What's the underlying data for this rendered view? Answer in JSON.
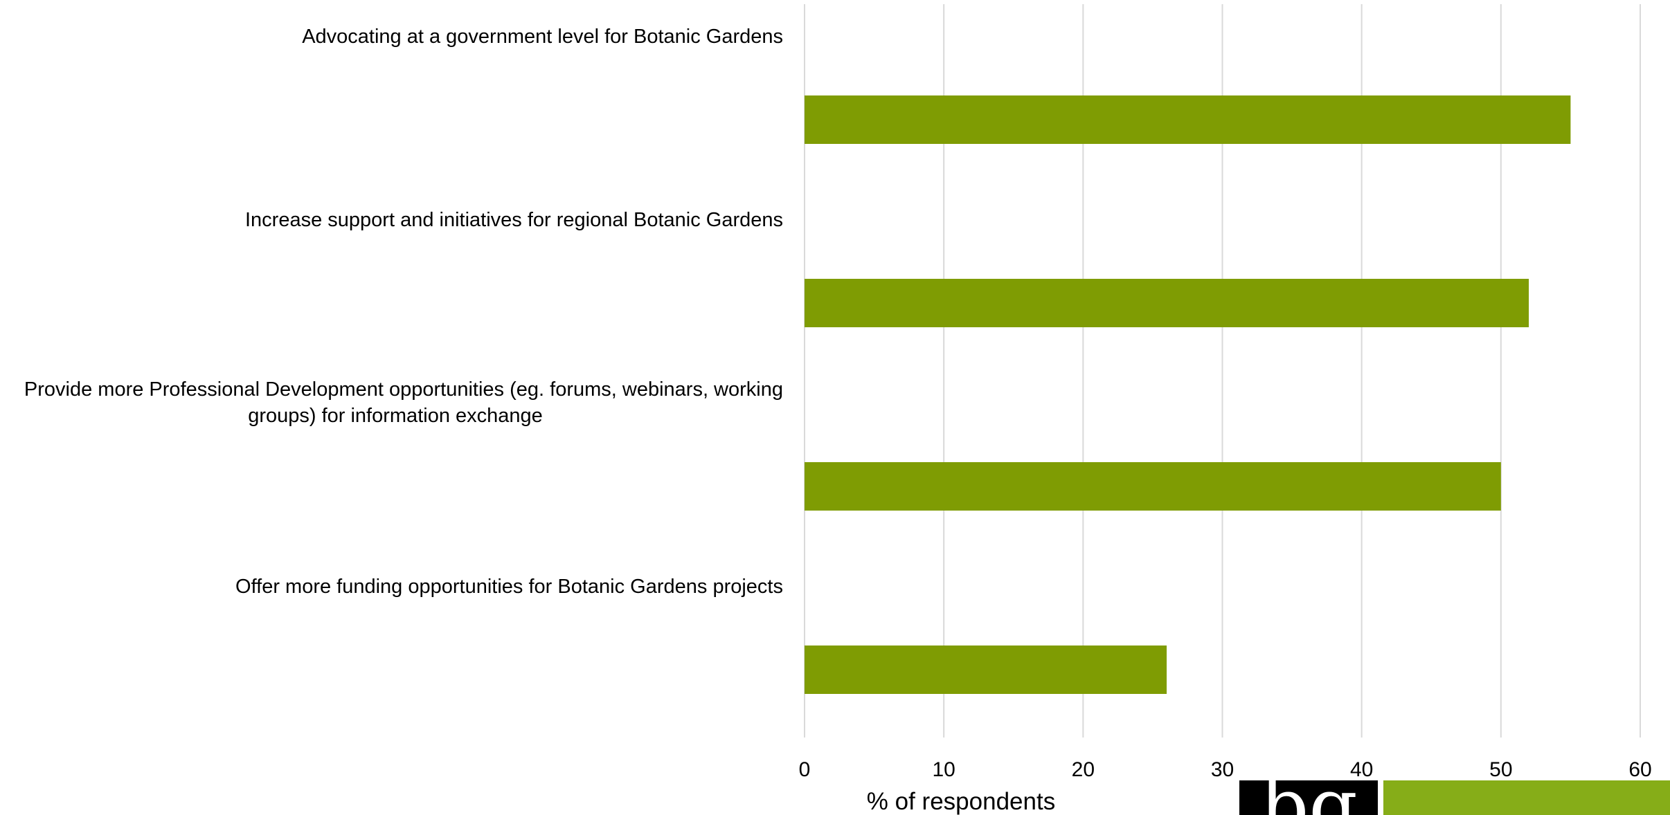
{
  "chart_data": {
    "type": "bar",
    "orientation": "horizontal",
    "categories": [
      "Advocating at a government level for Botanic Gardens",
      "Increase support and initiatives for regional Botanic Gardens",
      "Provide more Professional Development opportunities (eg. forums, webinars, working groups) for information exchange",
      "Offer more funding opportunities for Botanic Gardens projects"
    ],
    "category_label_lines": [
      [
        "Advocating at a government level for Botanic Gardens"
      ],
      [
        "Increase support and initiatives for regional Botanic Gardens"
      ],
      [
        "Provide more Professional Development opportunities (eg. forums, webinars, working",
        "groups) for information exchange"
      ],
      [
        "Offer more funding opportunities for Botanic Gardens projects"
      ]
    ],
    "values": [
      55,
      52,
      50,
      26
    ],
    "xlabel": "% of respondents",
    "ylabel": "",
    "xlim": [
      0,
      60
    ],
    "xticks": [
      "0",
      "10",
      "20",
      "30",
      "40",
      "50",
      "60"
    ],
    "grid": true,
    "legend": "none",
    "bar_color": "#7f9c03"
  },
  "logo": {
    "letters": "bg",
    "background": "#000000",
    "band_color": "#86ad18"
  }
}
